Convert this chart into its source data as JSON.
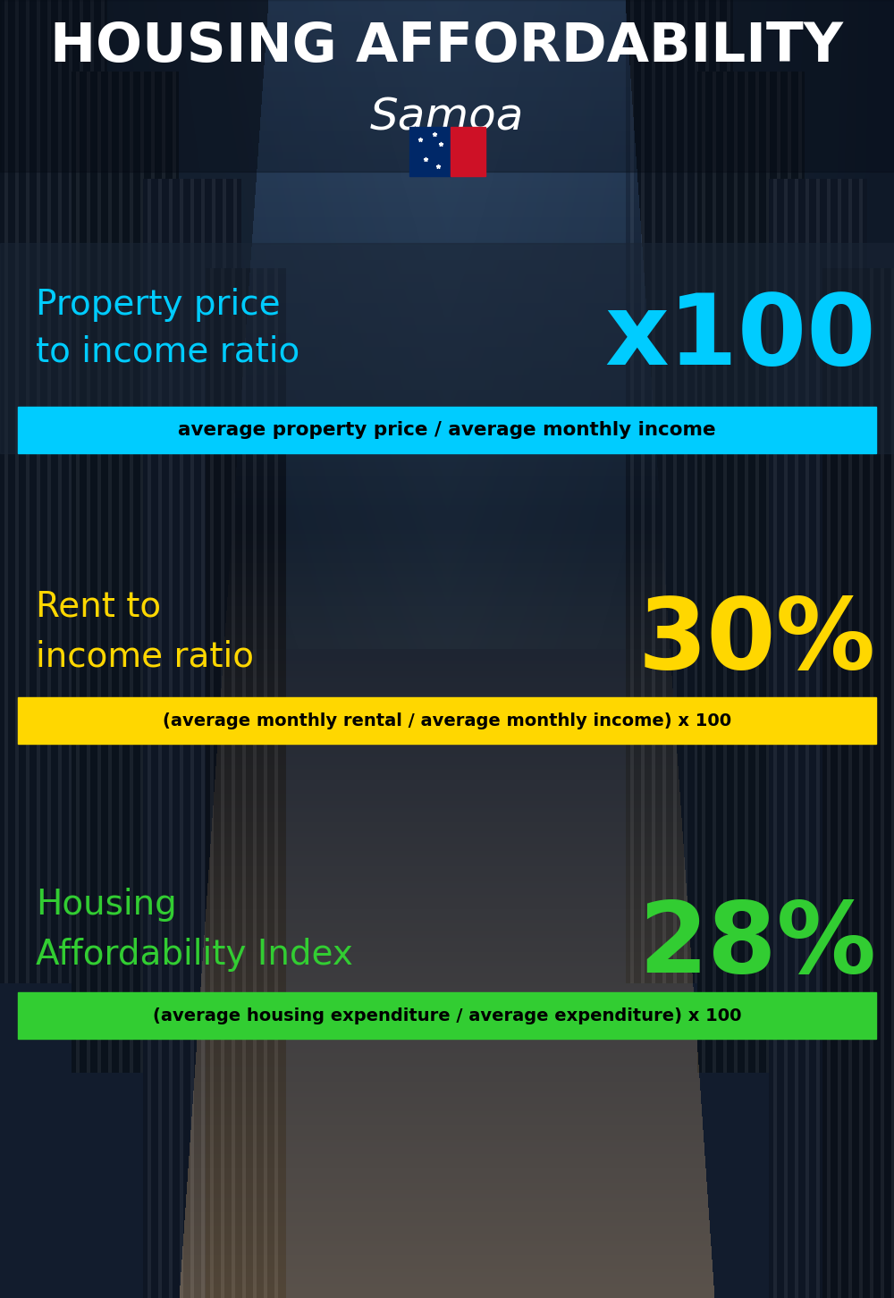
{
  "title_line1": "HOUSING AFFORDABILITY",
  "title_line2": "Samoa",
  "section1_label": "Property price\nto income ratio",
  "section1_value": "x100",
  "section1_label_color": "#00CCFF",
  "section1_value_color": "#00CCFF",
  "section1_formula": "average property price / average monthly income",
  "section1_formula_bg": "#00CCFF",
  "section1_formula_color": "#000000",
  "section2_label": "Rent to\nincome ratio",
  "section2_value": "30%",
  "section2_label_color": "#FFD700",
  "section2_value_color": "#FFD700",
  "section2_formula": "(average monthly rental / average monthly income) x 100",
  "section2_formula_bg": "#FFD700",
  "section2_formula_color": "#000000",
  "section3_label": "Housing\nAffordability Index",
  "section3_value": "28%",
  "section3_label_color": "#32CD32",
  "section3_value_color": "#32CD32",
  "section3_formula": "(average housing expenditure / average expenditure) x 100",
  "section3_formula_bg": "#32CD32",
  "section3_formula_color": "#000000",
  "bg_color": "#080d18",
  "title_color": "#FFFFFF",
  "overlay_alpha": 0.55,
  "overlay_color": "#1a2535"
}
